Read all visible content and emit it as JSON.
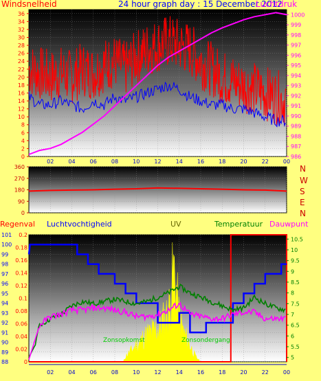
{
  "header": {
    "left_label": "Windsnelheid",
    "title": "24 hour graph day : 15 December 2012",
    "right_label": "Luchtdruk"
  },
  "bottom_header": {
    "rain": "Regenval",
    "humidity": "Luchtvochtigheid",
    "uv": "UV",
    "temperature": "Temperatuur",
    "dewpoint": "Dauwpunt",
    "sunrise": "Zonsopkomst",
    "sunset": "Zonsondergang"
  },
  "compass": [
    "N",
    "W",
    "S",
    "E",
    "N"
  ],
  "colors": {
    "background": "#ffff80",
    "wind_speed": "#ff0000",
    "wind_avg": "#0000ff",
    "pressure": "#ff00ff",
    "direction": "#ff0000",
    "humidity": "#0000ff",
    "temperature": "#008000",
    "dewpoint": "#ff00ff",
    "uv": "#ffff00",
    "rain": "#ff0000"
  },
  "chart_data": [
    {
      "type": "line",
      "title": "24 hour graph day : 15 December 2012",
      "x_ticks": [
        "02",
        "04",
        "06",
        "08",
        "10",
        "12",
        "14",
        "16",
        "18",
        "20",
        "22",
        "00"
      ],
      "y_left_ticks": [
        0,
        2,
        4,
        6,
        8,
        10,
        12,
        14,
        16,
        18,
        20,
        22,
        24,
        26,
        28,
        30,
        32,
        34,
        36
      ],
      "y_right_ticks": [
        986,
        987,
        988,
        989,
        990,
        991,
        992,
        993,
        994,
        995,
        996,
        997,
        998,
        999,
        1000
      ],
      "ylim_left": [
        0,
        37
      ],
      "ylim_right": [
        986,
        1000.5
      ],
      "series": [
        {
          "name": "Windsnelheid",
          "axis": "left",
          "x": [
            0,
            1,
            2,
            3,
            4,
            5,
            6,
            7,
            8,
            9,
            10,
            11,
            12,
            13,
            14,
            15,
            16,
            17,
            18,
            19,
            20,
            21,
            22,
            23,
            24
          ],
          "values": [
            22,
            21,
            20,
            21,
            20,
            22,
            21,
            23,
            24,
            22,
            25,
            27,
            28,
            29,
            28,
            27,
            24,
            22,
            20,
            19,
            18,
            17,
            16,
            15,
            14
          ]
        },
        {
          "name": "avg",
          "axis": "left",
          "x": [
            0,
            1,
            2,
            3,
            4,
            5,
            6,
            7,
            8,
            9,
            10,
            11,
            12,
            13,
            14,
            15,
            16,
            17,
            18,
            19,
            20,
            21,
            22,
            23,
            24
          ],
          "values": [
            15,
            13,
            13,
            14,
            13,
            12,
            14,
            13,
            15,
            14,
            15,
            16,
            17,
            18,
            17,
            15,
            14,
            13,
            13,
            12,
            12,
            11,
            10,
            9,
            9
          ]
        },
        {
          "name": "Luchtdruk",
          "axis": "right",
          "x": [
            0,
            1,
            2,
            3,
            4,
            5,
            6,
            7,
            8,
            9,
            10,
            11,
            12,
            13,
            14,
            15,
            16,
            17,
            18,
            19,
            20,
            21,
            22,
            23,
            24
          ],
          "values": [
            986.2,
            986.6,
            986.8,
            987.2,
            987.8,
            988.4,
            989.2,
            990.0,
            991.0,
            992.0,
            993.0,
            994.0,
            995.0,
            995.8,
            996.4,
            997.0,
            997.6,
            998.2,
            998.7,
            999.1,
            999.5,
            999.8,
            1000.0,
            1000.2,
            1000.0
          ]
        }
      ]
    },
    {
      "type": "line",
      "x_ticks": [],
      "y_ticks": [
        0,
        90,
        180,
        270,
        360
      ],
      "ylim": [
        0,
        360
      ],
      "series": [
        {
          "name": "Windrichting",
          "x": [
            0,
            2,
            4,
            6,
            8,
            10,
            12,
            14,
            16,
            18,
            20,
            22,
            24
          ],
          "values": [
            170,
            175,
            178,
            180,
            185,
            188,
            195,
            192,
            188,
            185,
            180,
            178,
            170
          ]
        }
      ]
    },
    {
      "type": "line",
      "x_ticks": [
        "02",
        "04",
        "06",
        "08",
        "10",
        "12",
        "14",
        "16",
        "18",
        "20",
        "22",
        "00"
      ],
      "y_left1_ticks": [
        0,
        0.02,
        0.04,
        0.06,
        0.08,
        0.1,
        0.12,
        0.14,
        0.16,
        0.18,
        0.2
      ],
      "y_left2_ticks": [
        88,
        89,
        90,
        91,
        92,
        93,
        94,
        95,
        96,
        97,
        98,
        99,
        100,
        101
      ],
      "y_right_ticks": [
        5,
        5.5,
        6,
        6.5,
        7,
        7.5,
        8,
        8.5,
        9,
        9.5,
        10,
        10.5
      ],
      "ylim_rain": [
        0,
        0.2
      ],
      "ylim_humidity": [
        88,
        101
      ],
      "ylim_temp": [
        4.8,
        10.7
      ],
      "series": [
        {
          "name": "Luchtvochtigheid",
          "axis": "humidity",
          "x": [
            0,
            0.1,
            4.5,
            4.5,
            5.5,
            5.5,
            6.5,
            6.5,
            8,
            8,
            9,
            9,
            10,
            10,
            12,
            12,
            14,
            14,
            15,
            15,
            16.5,
            16.5,
            19,
            19,
            20,
            20,
            21,
            21,
            22,
            22,
            23.5,
            23.5,
            24
          ],
          "values": [
            99,
            100,
            100,
            99,
            99,
            98,
            98,
            97,
            97,
            96,
            96,
            95,
            95,
            94,
            94,
            92,
            92,
            93,
            93,
            91,
            91,
            92,
            92,
            94,
            94,
            95,
            95,
            96,
            96,
            97,
            97,
            98,
            98
          ]
        },
        {
          "name": "Temperatuur",
          "axis": "temp",
          "x": [
            0,
            0.5,
            1,
            2,
            3,
            4,
            5,
            6,
            7,
            8,
            9,
            10,
            11,
            12,
            13,
            14,
            15,
            16,
            17,
            18,
            19,
            20,
            21,
            22,
            23,
            24
          ],
          "values": [
            5.0,
            5.5,
            6.5,
            6.8,
            7.0,
            7.4,
            7.6,
            7.5,
            7.6,
            7.7,
            7.6,
            7.5,
            7.6,
            7.8,
            8.0,
            8.3,
            8.0,
            7.8,
            7.6,
            7.4,
            7.2,
            7.3,
            7.8,
            7.5,
            7.3,
            7.2
          ]
        },
        {
          "name": "Dauwpunt",
          "axis": "temp",
          "x": [
            0,
            1,
            2,
            3,
            4,
            5,
            6,
            7,
            8,
            9,
            10,
            11,
            12,
            13,
            14,
            15,
            16,
            17,
            18,
            19,
            20,
            21,
            22,
            23,
            24
          ],
          "values": [
            4.9,
            6.5,
            6.9,
            7.0,
            7.2,
            7.2,
            7.3,
            7.3,
            7.2,
            7.1,
            6.9,
            6.9,
            7.0,
            7.2,
            7.5,
            7.0,
            6.9,
            6.8,
            6.8,
            7.0,
            7.1,
            7.1,
            6.8,
            6.8,
            6.8
          ]
        },
        {
          "name": "UV",
          "axis": "rain",
          "x": [
            8.8,
            9,
            10,
            11,
            12,
            13,
            13.5,
            14,
            14.5,
            15,
            15.5,
            16
          ],
          "values": [
            0,
            0.01,
            0.03,
            0.05,
            0.06,
            0.09,
            0.17,
            0.08,
            0.05,
            0.03,
            0.01,
            0
          ]
        },
        {
          "name": "Regenval",
          "axis": "rain",
          "x": [
            0,
            18.8,
            18.8,
            24
          ],
          "values": [
            0,
            0,
            0.2,
            0.2
          ]
        }
      ]
    }
  ]
}
